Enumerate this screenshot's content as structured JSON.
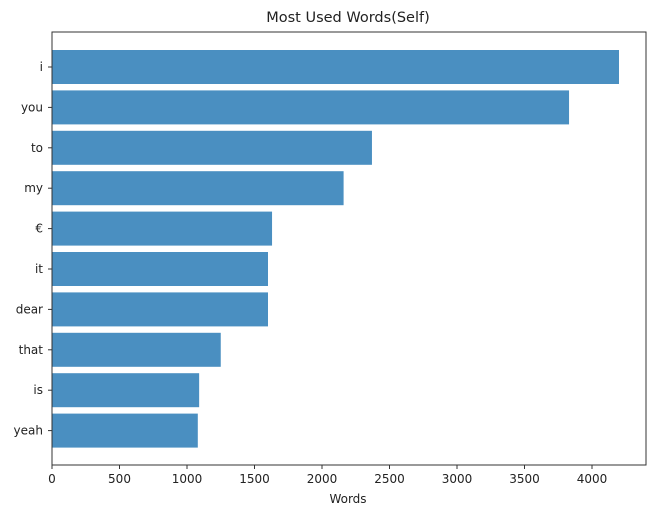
{
  "chart_data": {
    "type": "bar",
    "orientation": "horizontal",
    "title": "Most Used Words(Self)",
    "xlabel": "Words",
    "ylabel": "",
    "categories": [
      "i",
      "you",
      "to",
      "my",
      "€",
      "it",
      "dear",
      "that",
      "is",
      "yeah"
    ],
    "values": [
      4200,
      3830,
      2370,
      2160,
      1630,
      1600,
      1600,
      1250,
      1090,
      1080
    ],
    "xlim": [
      0,
      4400
    ],
    "xticks": [
      0,
      500,
      1000,
      1500,
      2000,
      2500,
      3000,
      3500,
      4000
    ],
    "grid": false,
    "bar_color": "#4a8fc1"
  }
}
